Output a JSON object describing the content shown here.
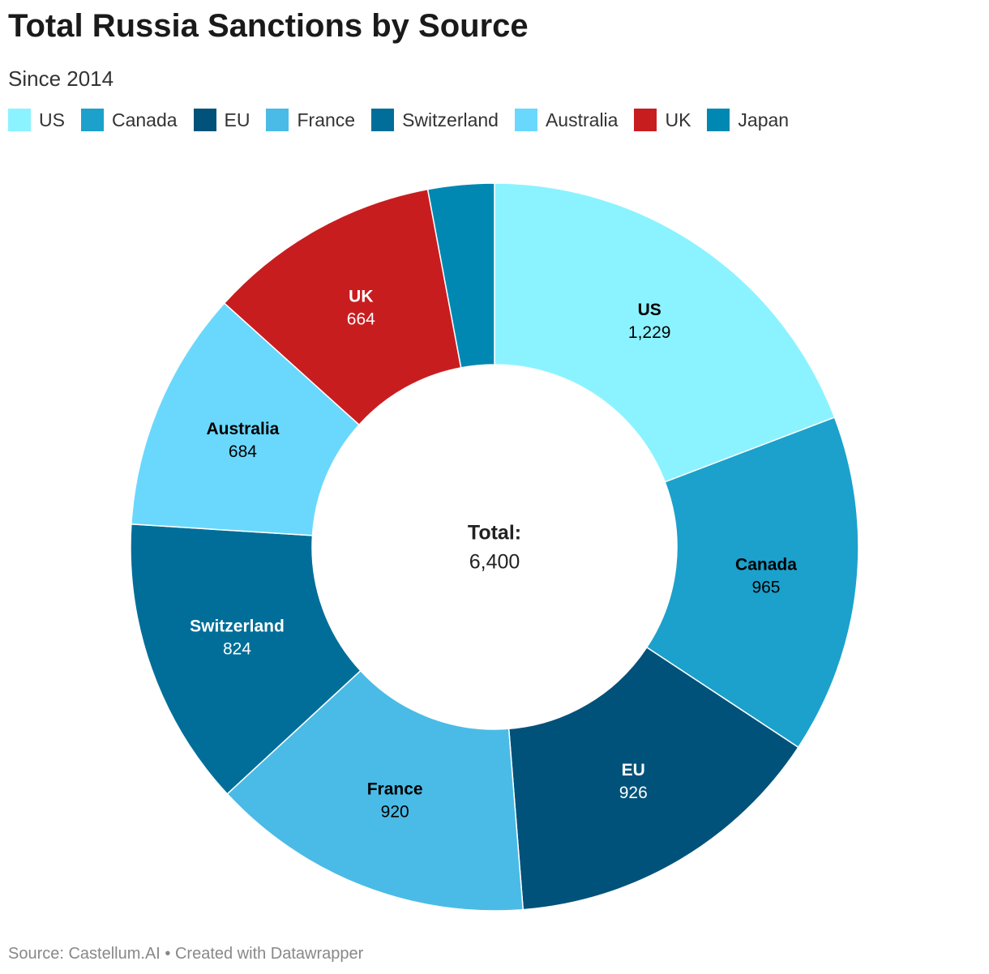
{
  "chart_data": {
    "type": "donut",
    "title": "Total Russia Sanctions by Source",
    "subtitle": "Since 2014",
    "categories": [
      "US",
      "Canada",
      "EU",
      "France",
      "Switzerland",
      "Australia",
      "UK",
      "Japan"
    ],
    "values": [
      1229,
      965,
      926,
      920,
      824,
      684,
      664,
      188
    ],
    "value_labels": [
      "1,229",
      "965",
      "926",
      "920",
      "824",
      "684",
      "664",
      null
    ],
    "colors": [
      "#8bf3ff",
      "#1ba1cc",
      "#00527a",
      "#4abbe6",
      "#006e99",
      "#6ad8fc",
      "#c81d1f",
      "#0088b3"
    ],
    "label_colors": [
      "#000000",
      "#000000",
      "#ffffff",
      "#000000",
      "#ffffff",
      "#000000",
      "#ffffff",
      null
    ],
    "center_title": "Total:",
    "total": {
      "value": 6400,
      "label": "6,400"
    },
    "source": "Source: Castellum.AI • Created with Datawrapper"
  }
}
